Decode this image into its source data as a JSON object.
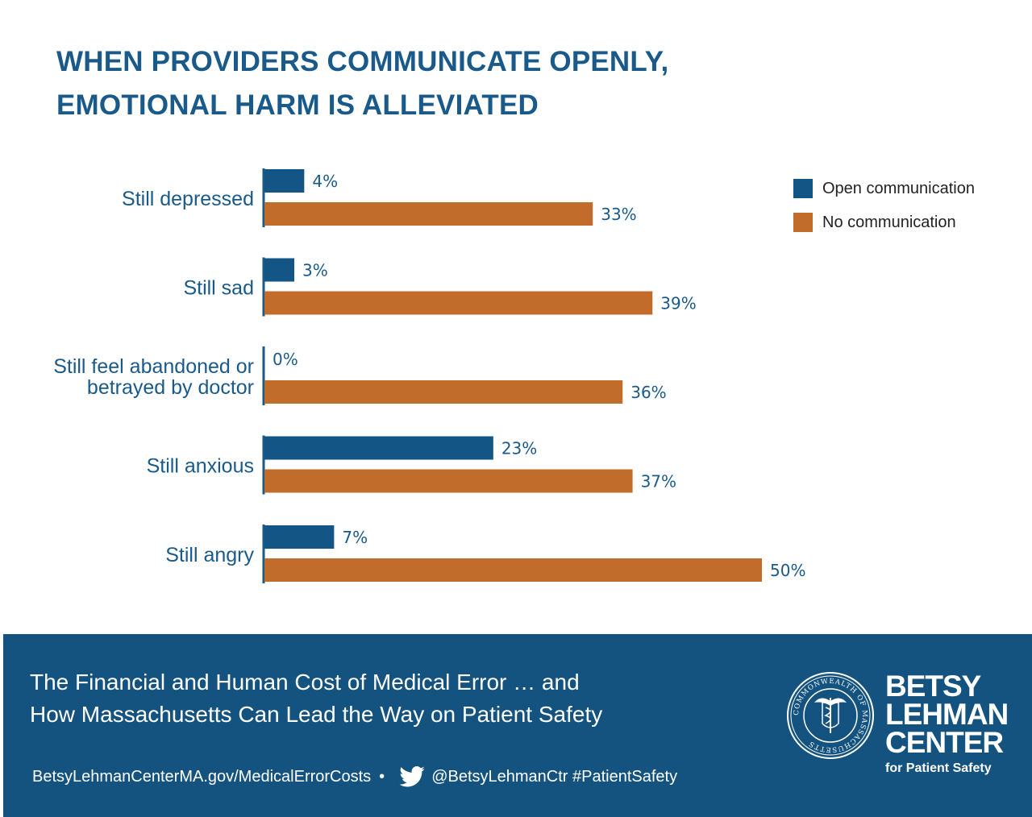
{
  "title": {
    "line1": "WHEN PROVIDERS COMMUNICATE OPENLY,",
    "line2": "EMOTIONAL HARM IS ALLEVIATED"
  },
  "colors": {
    "open": "#135584",
    "none": "#c16c2b",
    "label": "#1a5a8a",
    "value": "#1a5a8a"
  },
  "chart_data": {
    "type": "bar",
    "orientation": "horizontal",
    "title": "WHEN PROVIDERS COMMUNICATE OPENLY, EMOTIONAL HARM IS ALLEVIATED",
    "categories": [
      [
        "Still depressed"
      ],
      [
        "Still sad"
      ],
      [
        "Still feel abandoned or",
        "betrayed by doctor"
      ],
      [
        "Still anxious"
      ],
      [
        "Still angry"
      ]
    ],
    "series": [
      {
        "name": "Open communication",
        "values": [
          4,
          3,
          0,
          23,
          7
        ],
        "labels": [
          "4%",
          "3%",
          "0%",
          "23%",
          "7%"
        ]
      },
      {
        "name": "No communication",
        "values": [
          33,
          39,
          36,
          37,
          50
        ],
        "labels": [
          "33%",
          "39%",
          "36%",
          "37%",
          "50%"
        ]
      }
    ],
    "xlim": [
      0,
      50
    ],
    "grid": false,
    "legend_position": "top-right"
  },
  "legend": {
    "open_label": "Open communication",
    "none_label": "No communication"
  },
  "footer": {
    "title_line1": "The Financial and Human Cost of Medical Error … and",
    "title_line2": "How Massachusetts Can Lead the Way on Patient Safety",
    "website": "BetsyLehmanCenterMA.gov/MedicalErrorCosts",
    "bullet": "•",
    "twitter": "@BetsyLehmanCtr #PatientSafety",
    "brand_line1": "BETSY",
    "brand_line2": "LEHMAN",
    "brand_line3": "CENTER",
    "brand_sub": "for Patient Safety",
    "seal_text": "COMMONWEALTH OF MASSACHUSETTS"
  }
}
